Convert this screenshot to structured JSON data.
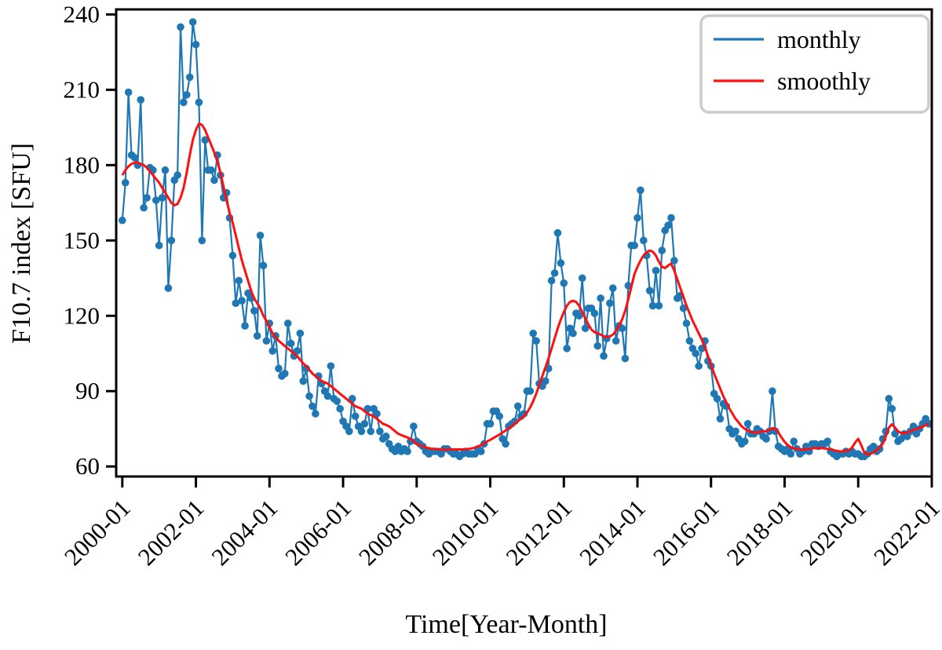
{
  "figure": {
    "background": "#ffffff",
    "spine_color": "#000000"
  },
  "chart_data": {
    "type": "line",
    "title": "",
    "xlabel": "Time[Year-Month]",
    "ylabel": "F10.7 index [SFU]",
    "x_start": "2000-01",
    "x_step_months": 1,
    "xtick_labels": [
      "2000-01",
      "2002-01",
      "2004-01",
      "2006-01",
      "2008-01",
      "2010-01",
      "2012-01",
      "2014-01",
      "2016-01",
      "2018-01",
      "2020-01",
      "2022-01"
    ],
    "xtick_month_index": [
      0,
      24,
      48,
      72,
      96,
      120,
      144,
      168,
      192,
      216,
      240,
      264
    ],
    "yticks": [
      60,
      90,
      120,
      150,
      180,
      210,
      240
    ],
    "ylim": [
      56,
      242
    ],
    "xlim_month_index": [
      -2,
      264
    ],
    "grid": false,
    "tick_rotation_deg": -45,
    "legend": {
      "position": "upper right",
      "border_color": "#cccccc",
      "background": "#ffffff"
    },
    "series": [
      {
        "name": "monthly",
        "color": "#1f77b4",
        "marker": "circle",
        "values": [
          158,
          173,
          209,
          184,
          183,
          180,
          206,
          163,
          167,
          179,
          178,
          166,
          148,
          167,
          178,
          131,
          150,
          174,
          176,
          235,
          205,
          208,
          215,
          237,
          228,
          205,
          150,
          190,
          178,
          178,
          174,
          184,
          176,
          167,
          169,
          159,
          144,
          125,
          134,
          126,
          116,
          129,
          127,
          122,
          112,
          152,
          140,
          110,
          117,
          106,
          112,
          99,
          96,
          97,
          117,
          109,
          104,
          106,
          113,
          94,
          99,
          88,
          84,
          81,
          96,
          93,
          90,
          88,
          100,
          87,
          86,
          83,
          78,
          76,
          74,
          87,
          80,
          76,
          74,
          77,
          83,
          74,
          83,
          81,
          74,
          71,
          72,
          69,
          67,
          66,
          68,
          66,
          67,
          66,
          70,
          76,
          70,
          69,
          68,
          66,
          65,
          66,
          66,
          66,
          65,
          67,
          67,
          66,
          65,
          65,
          64,
          65,
          66,
          65,
          65,
          65,
          67,
          66,
          69,
          77,
          77,
          82,
          82,
          80,
          71,
          69,
          76,
          77,
          78,
          84,
          80,
          81,
          90,
          90,
          113,
          110,
          93,
          92,
          94,
          99,
          134,
          137,
          153,
          141,
          133,
          107,
          115,
          113,
          121,
          120,
          135,
          115,
          123,
          123,
          121,
          108,
          127,
          104,
          111,
          125,
          131,
          110,
          116,
          115,
          103,
          132,
          148,
          148,
          159,
          170,
          150,
          144,
          130,
          124,
          138,
          124,
          146,
          154,
          156,
          159,
          142,
          127,
          128,
          123,
          117,
          110,
          107,
          105,
          100,
          107,
          110,
          102,
          100,
          89,
          87,
          79,
          85,
          84,
          75,
          73,
          74,
          71,
          69,
          70,
          77,
          73,
          73,
          75,
          74,
          72,
          71,
          74,
          90,
          74,
          68,
          67,
          66,
          67,
          65,
          70,
          67,
          65,
          66,
          68,
          66,
          69,
          69,
          68,
          69,
          69,
          70,
          66,
          65,
          64,
          65,
          65,
          66,
          65,
          66,
          65,
          65,
          64,
          64,
          65,
          67,
          68,
          66,
          67,
          71,
          74,
          87,
          83,
          73,
          70,
          71,
          73,
          72,
          74,
          76,
          73,
          75,
          77,
          79,
          77
        ]
      },
      {
        "name": "smoothly",
        "color": "#ff0f0f",
        "marker": "none",
        "values": [
          176,
          178,
          179.5,
          180.5,
          181,
          181,
          180.5,
          180,
          179,
          177.5,
          176,
          174.5,
          173,
          171,
          169,
          167,
          165,
          164,
          164.5,
          167,
          171,
          177,
          184,
          190,
          194,
          196.5,
          196,
          194,
          191,
          188,
          185,
          181.5,
          177,
          171.5,
          166,
          161,
          157,
          152,
          147,
          142,
          138,
          134,
          130,
          127,
          125,
          123,
          120,
          118,
          115.5,
          113,
          111.5,
          110,
          109,
          108,
          107,
          106,
          105,
          104,
          102.5,
          101,
          100,
          98.5,
          97,
          96,
          95,
          94,
          93.5,
          93,
          92,
          91,
          90,
          89,
          88,
          87,
          86,
          85,
          84,
          83.5,
          83,
          82,
          81,
          80.5,
          80,
          79,
          78,
          77,
          76.5,
          76,
          75,
          74,
          73,
          72.5,
          72,
          71.5,
          71,
          70,
          69,
          68.5,
          68,
          67.5,
          67.3,
          67,
          67,
          66.8,
          66.7,
          66.7,
          66.7,
          66.8,
          66.8,
          66.8,
          66.8,
          66.8,
          66.9,
          67,
          67.2,
          67.5,
          68,
          68.5,
          69.2,
          70,
          70.6,
          71.3,
          72,
          72.7,
          73.5,
          74.3,
          75.2,
          76.1,
          77,
          78,
          79,
          80,
          81.5,
          83.5,
          86,
          89,
          92.5,
          96,
          99.5,
          103,
          107,
          111,
          115,
          118.5,
          121.5,
          124,
          125.5,
          126,
          125.5,
          124,
          121.5,
          119,
          116.5,
          114.5,
          113.5,
          113,
          112.5,
          111.8,
          111.5,
          111.8,
          112.5,
          114,
          116,
          118.5,
          122,
          126.5,
          131.5,
          136.5,
          139.5,
          142,
          144,
          145.3,
          146,
          145.5,
          144,
          141.5,
          139.5,
          139,
          140,
          140.8,
          138,
          134.5,
          131,
          127.5,
          124,
          121,
          118,
          115.5,
          113,
          110.5,
          107.5,
          104,
          100.5,
          97,
          94,
          91,
          88,
          85.5,
          83,
          81,
          79,
          77.5,
          76,
          75,
          74.3,
          73.8,
          73.5,
          73.5,
          73.8,
          74,
          74,
          74.5,
          75.3,
          75,
          73.5,
          71.5,
          69.8,
          68.5,
          67.6,
          67.2,
          67,
          66.8,
          66.7,
          66.8,
          67,
          67.2,
          67.3,
          67.3,
          67.3,
          67.2,
          67,
          66.8,
          66.5,
          66.2,
          66,
          66,
          66.2,
          66.5,
          67.5,
          69.5,
          71,
          68.5,
          65.5,
          64.8,
          65,
          65.6,
          66.5,
          67.5,
          69,
          72,
          75.5,
          76.8,
          75.5,
          74,
          73.3,
          73.2,
          73.5,
          74,
          74.5,
          75,
          75.3,
          75.8,
          76.5,
          77
        ]
      }
    ]
  }
}
